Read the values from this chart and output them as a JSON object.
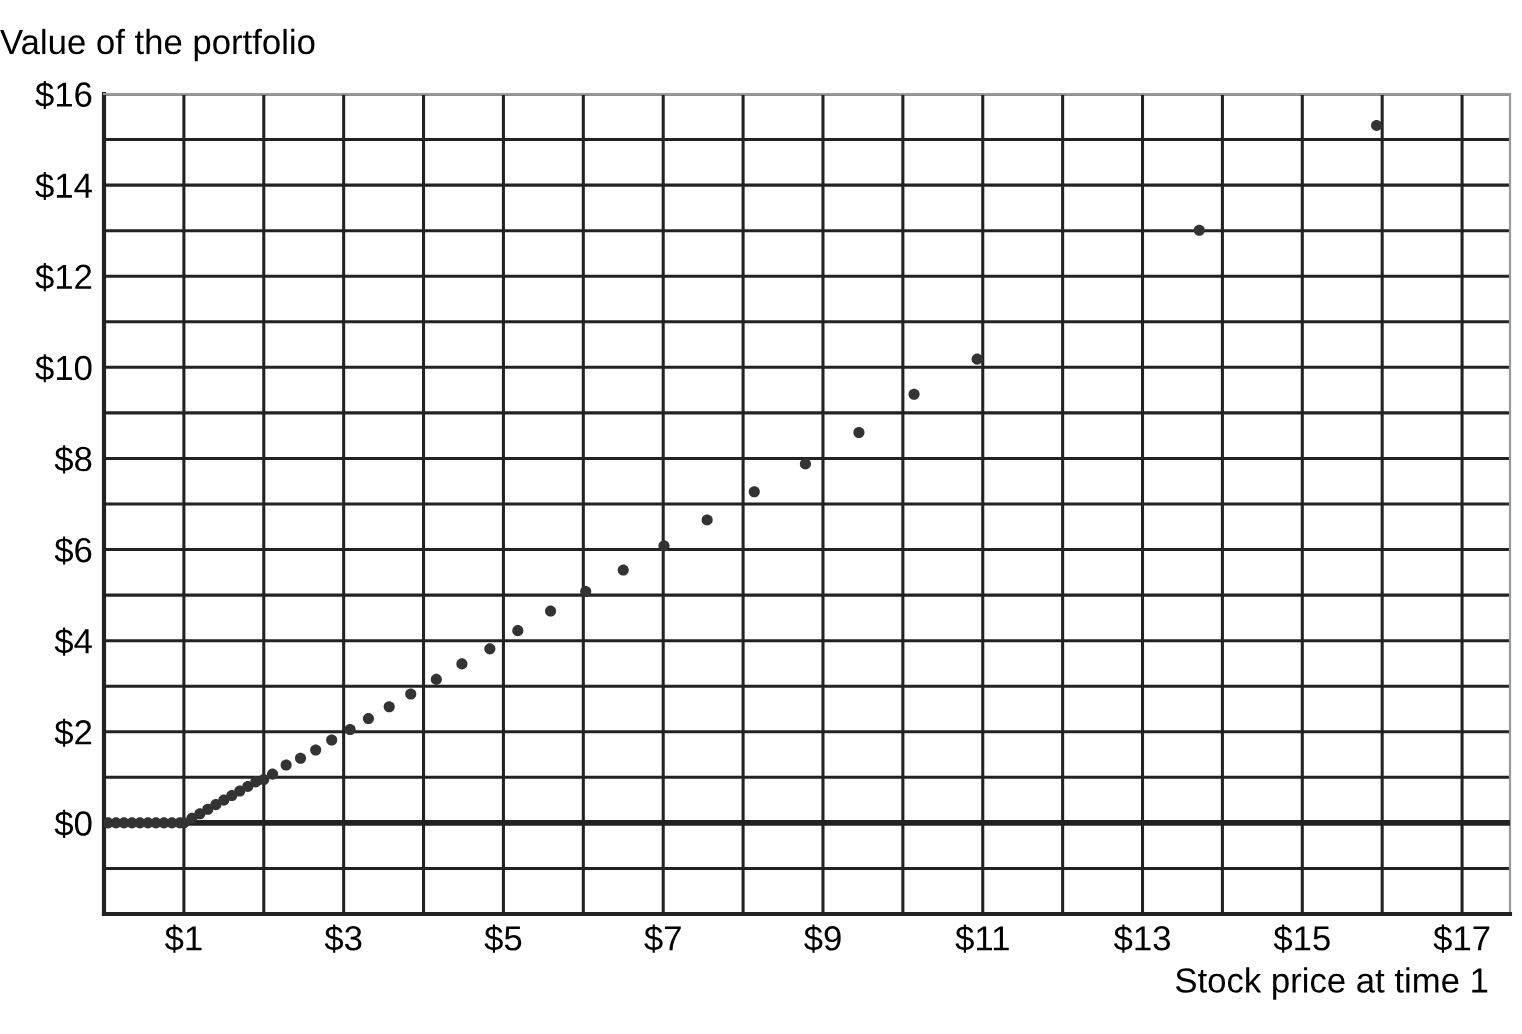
{
  "chart_data": {
    "type": "scatter",
    "xlabel": "Stock price at time 1",
    "ylabel": "Value of the portfolio",
    "x": [
      0.05,
      0.15,
      0.25,
      0.35,
      0.45,
      0.55,
      0.65,
      0.75,
      0.85,
      0.95,
      1.0,
      1.1,
      1.2,
      1.3,
      1.4,
      1.5,
      1.6,
      1.7,
      1.8,
      1.9,
      2.0,
      2.11,
      2.28,
      2.46,
      2.65,
      2.85,
      3.08,
      3.31,
      3.57,
      3.84,
      4.16,
      4.48,
      4.83,
      5.18,
      5.59,
      6.03,
      6.5,
      7.01,
      7.55,
      8.14,
      8.78,
      9.45,
      10.14,
      10.93,
      13.71,
      15.93
    ],
    "series": [
      {
        "color": "#333333",
        "values": [
          0,
          0,
          0,
          0,
          0,
          0,
          0,
          0,
          0,
          0,
          0,
          0.1,
          0.2,
          0.3,
          0.4,
          0.5,
          0.6,
          0.7,
          0.8,
          0.9,
          0.95,
          1.07,
          1.27,
          1.42,
          1.6,
          1.82,
          2.05,
          2.29,
          2.55,
          2.83,
          3.15,
          3.49,
          3.82,
          4.22,
          4.65,
          5.08,
          5.55,
          6.08,
          6.65,
          7.27,
          7.88,
          8.57,
          9.41,
          10.18,
          13.01,
          15.31
        ]
      }
    ],
    "xlim": [
      0,
      17.6
    ],
    "ylim": [
      -2,
      16
    ],
    "xticks": [
      {
        "value": 1,
        "label": "$1"
      },
      {
        "value": 2,
        "label": null
      },
      {
        "value": 3,
        "label": "$3"
      },
      {
        "value": 4,
        "label": null
      },
      {
        "value": 5,
        "label": "$5"
      },
      {
        "value": 6,
        "label": null
      },
      {
        "value": 7,
        "label": "$7"
      },
      {
        "value": 8,
        "label": null
      },
      {
        "value": 9,
        "label": "$9"
      },
      {
        "value": 10,
        "label": null
      },
      {
        "value": 11,
        "label": "$11"
      },
      {
        "value": 12,
        "label": null
      },
      {
        "value": 13,
        "label": "$13"
      },
      {
        "value": 14,
        "label": null
      },
      {
        "value": 15,
        "label": "$15"
      },
      {
        "value": 16,
        "label": null
      },
      {
        "value": 17,
        "label": "$17"
      }
    ],
    "yticks": [
      {
        "value": -1,
        "label": null
      },
      {
        "value": 0,
        "label": "$0"
      },
      {
        "value": 1,
        "label": null
      },
      {
        "value": 2,
        "label": "$2"
      },
      {
        "value": 3,
        "label": null
      },
      {
        "value": 4,
        "label": "$4"
      },
      {
        "value": 5,
        "label": null
      },
      {
        "value": 6,
        "label": "$6"
      },
      {
        "value": 7,
        "label": null
      },
      {
        "value": 8,
        "label": "$8"
      },
      {
        "value": 9,
        "label": null
      },
      {
        "value": 10,
        "label": "$10"
      },
      {
        "value": 11,
        "label": null
      },
      {
        "value": 12,
        "label": "$12"
      },
      {
        "value": 13,
        "label": null
      },
      {
        "value": 14,
        "label": "$14"
      },
      {
        "value": 15,
        "label": null
      },
      {
        "value": 16,
        "label": "$16"
      }
    ],
    "ref_lines": [
      {
        "axis": "y",
        "value": 0,
        "color": "#222222"
      }
    ],
    "grid": true,
    "marker": "circle"
  }
}
